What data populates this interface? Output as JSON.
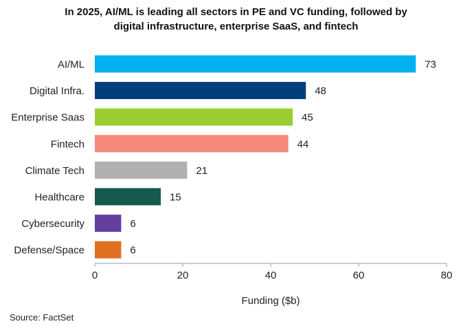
{
  "chart_data": {
    "type": "bar",
    "orientation": "horizontal",
    "title_lines": [
      "In 2025, AI/ML is leading all sectors in PE and VC funding, followed by",
      "digital infrastructure, enterprise SaaS, and fintech"
    ],
    "categories": [
      "AI/ML",
      "Digital Infra.",
      "Enterprise Saas",
      "Fintech",
      "Climate Tech",
      "Healthcare",
      "Cybersecurity",
      "Defense/Space"
    ],
    "values": [
      73,
      48,
      45,
      44,
      21,
      15,
      6,
      6
    ],
    "colors": [
      "#00B0F0",
      "#003F7D",
      "#9ACD32",
      "#F4897C",
      "#B0B0B0",
      "#145A4E",
      "#6340A0",
      "#E07020"
    ],
    "xlabel": "Funding ($b)",
    "ylabel": "",
    "xlim": [
      0,
      80
    ],
    "xticks": [
      0,
      20,
      40,
      60,
      80
    ],
    "grid": false,
    "source": "Source: FactSet"
  }
}
